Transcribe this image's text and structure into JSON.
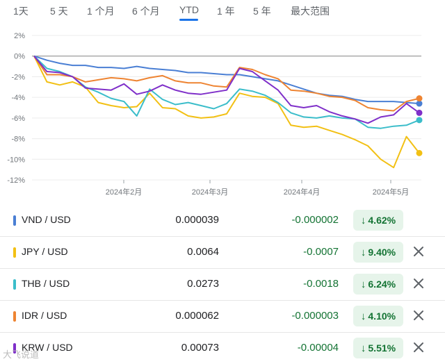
{
  "tabs": [
    {
      "label": "1天",
      "active": false
    },
    {
      "label": "5 天",
      "active": false
    },
    {
      "label": "1 个月",
      "active": false
    },
    {
      "label": "6 个月",
      "active": false
    },
    {
      "label": "YTD",
      "active": true
    },
    {
      "label": "1 年",
      "active": false
    },
    {
      "label": "5 年",
      "active": false
    },
    {
      "label": "最大范围",
      "active": false
    }
  ],
  "chart_data": {
    "type": "line",
    "xlabel": "",
    "ylabel": "",
    "x_ticks": [
      "2024年2月",
      "2024年3月",
      "2024年4月",
      "2024年5月"
    ],
    "y_ticks": [
      "2%",
      "0%",
      "-2%",
      "-4%",
      "-6%",
      "-8%",
      "-10%",
      "-12%"
    ],
    "ylim": [
      -12,
      2
    ],
    "grid": true,
    "baseline": 0,
    "series": [
      {
        "name": "VND / USD",
        "color": "#4a7fd4",
        "values": [
          0,
          -0.4,
          -0.7,
          -0.9,
          -0.9,
          -1.1,
          -1.1,
          -1.2,
          -1.0,
          -1.2,
          -1.3,
          -1.4,
          -1.6,
          -1.6,
          -1.7,
          -1.8,
          -1.8,
          -2.0,
          -2.2,
          -2.4,
          -2.8,
          -3.2,
          -3.6,
          -3.8,
          -3.9,
          -4.2,
          -4.4,
          -4.4,
          -4.4,
          -4.5,
          -4.6
        ]
      },
      {
        "name": "JPY / USD",
        "color": "#f2c014",
        "values": [
          0,
          -2.5,
          -2.8,
          -2.5,
          -3.0,
          -4.5,
          -4.8,
          -5.0,
          -4.9,
          -3.6,
          -5.0,
          -5.1,
          -5.8,
          -6.0,
          -5.9,
          -5.6,
          -3.6,
          -3.9,
          -4.0,
          -4.6,
          -6.7,
          -6.9,
          -6.8,
          -7.2,
          -7.6,
          -8.1,
          -8.7,
          -10.0,
          -10.8,
          -7.8,
          -9.4
        ]
      },
      {
        "name": "THB / USD",
        "color": "#3bbdca",
        "values": [
          0,
          -1.2,
          -1.5,
          -2.0,
          -3.0,
          -3.5,
          -4.1,
          -4.4,
          -5.8,
          -3.2,
          -4.2,
          -4.7,
          -4.5,
          -4.8,
          -5.1,
          -4.6,
          -3.2,
          -3.4,
          -3.8,
          -4.5,
          -5.5,
          -5.9,
          -6.0,
          -5.8,
          -6.0,
          -6.1,
          -6.9,
          -7.0,
          -6.8,
          -6.7,
          -6.2
        ]
      },
      {
        "name": "IDR / USD",
        "color": "#ee8432",
        "values": [
          0,
          -1.8,
          -1.8,
          -2.0,
          -2.5,
          -2.3,
          -2.1,
          -2.2,
          -2.4,
          -2.1,
          -1.9,
          -2.4,
          -2.6,
          -2.6,
          -2.9,
          -3.0,
          -1.1,
          -1.3,
          -1.8,
          -2.2,
          -3.3,
          -3.4,
          -3.6,
          -3.9,
          -4.0,
          -4.3,
          -5.0,
          -5.2,
          -5.3,
          -4.4,
          -4.1
        ]
      },
      {
        "name": "KRW / USD",
        "color": "#7f2fc9",
        "values": [
          0,
          -1.5,
          -1.6,
          -2.0,
          -3.1,
          -3.2,
          -3.3,
          -2.7,
          -3.7,
          -3.4,
          -2.8,
          -3.3,
          -3.6,
          -3.7,
          -3.5,
          -3.3,
          -1.2,
          -1.5,
          -2.4,
          -3.3,
          -4.8,
          -5.0,
          -4.8,
          -5.4,
          -5.8,
          -6.1,
          -6.5,
          -5.9,
          -5.7,
          -4.6,
          -5.5
        ]
      }
    ]
  },
  "rows": [
    {
      "pair": "VND / USD",
      "price": "0.000039",
      "change": "-0.000002",
      "pct": "4.62%",
      "arrow": "↓",
      "color": "#4a7fd4",
      "closable": false
    },
    {
      "pair": "JPY / USD",
      "price": "0.0064",
      "change": "-0.0007",
      "pct": "9.40%",
      "arrow": "↓",
      "color": "#f2c014",
      "closable": true
    },
    {
      "pair": "THB / USD",
      "price": "0.0273",
      "change": "-0.0018",
      "pct": "6.24%",
      "arrow": "↓",
      "color": "#3bbdca",
      "closable": true
    },
    {
      "pair": "IDR / USD",
      "price": "0.000062",
      "change": "-0.000003",
      "pct": "4.10%",
      "arrow": "↓",
      "color": "#ee8432",
      "closable": true
    },
    {
      "pair": "KRW / USD",
      "price": "0.00073",
      "change": "-0.00004",
      "pct": "5.51%",
      "arrow": "↓",
      "color": "#7f2fc9",
      "closable": true
    }
  ],
  "watermark": "大飞说道"
}
